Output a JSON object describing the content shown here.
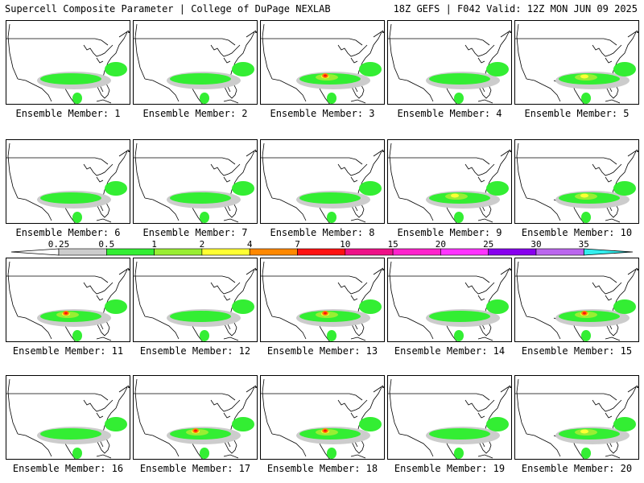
{
  "header": {
    "title_left": "Supercell Composite Parameter | College of DuPage NEXLAB",
    "title_right": "18Z GEFS | F042 Valid: 12Z MON JUN 09 2025"
  },
  "caption_prefix": "Ensemble Member: ",
  "members": [
    {
      "label": "Ensemble Member: 1",
      "level": 1
    },
    {
      "label": "Ensemble Member: 2",
      "level": 1
    },
    {
      "label": "Ensemble Member: 3",
      "level": 3
    },
    {
      "label": "Ensemble Member: 4",
      "level": 1
    },
    {
      "label": "Ensemble Member: 5",
      "level": 2
    },
    {
      "label": "Ensemble Member: 6",
      "level": 1
    },
    {
      "label": "Ensemble Member: 7",
      "level": 1
    },
    {
      "label": "Ensemble Member: 8",
      "level": 1
    },
    {
      "label": "Ensemble Member: 9",
      "level": 2
    },
    {
      "label": "Ensemble Member: 10",
      "level": 2
    },
    {
      "label": "Ensemble Member: 11",
      "level": 3
    },
    {
      "label": "Ensemble Member: 12",
      "level": 1
    },
    {
      "label": "Ensemble Member: 13",
      "level": 3
    },
    {
      "label": "Ensemble Member: 14",
      "level": 1
    },
    {
      "label": "Ensemble Member: 15",
      "level": 3
    },
    {
      "label": "Ensemble Member: 16",
      "level": 1
    },
    {
      "label": "Ensemble Member: 17",
      "level": 3
    },
    {
      "label": "Ensemble Member: 18",
      "level": 3
    },
    {
      "label": "Ensemble Member: 19",
      "level": 1
    },
    {
      "label": "Ensemble Member: 20",
      "level": 2
    }
  ],
  "colorbar": {
    "labels": [
      "0.25",
      "0.5",
      "1",
      "2",
      "4",
      "7",
      "10",
      "15",
      "20",
      "25",
      "30",
      "35"
    ],
    "colors": [
      "#cccccc",
      "#33ee33",
      "#99ee33",
      "#ffff33",
      "#ff8800",
      "#ff1111",
      "#ee1188",
      "#ff22cc",
      "#ff33ff",
      "#8800ee",
      "#bb66ee",
      "#33eeee"
    ]
  },
  "map_colors": {
    "gray": "#cccccc",
    "green": "#33ee33",
    "lightgreen": "#99ee33",
    "yellow": "#ffff33",
    "orange": "#ff8800",
    "red": "#ff1111"
  }
}
